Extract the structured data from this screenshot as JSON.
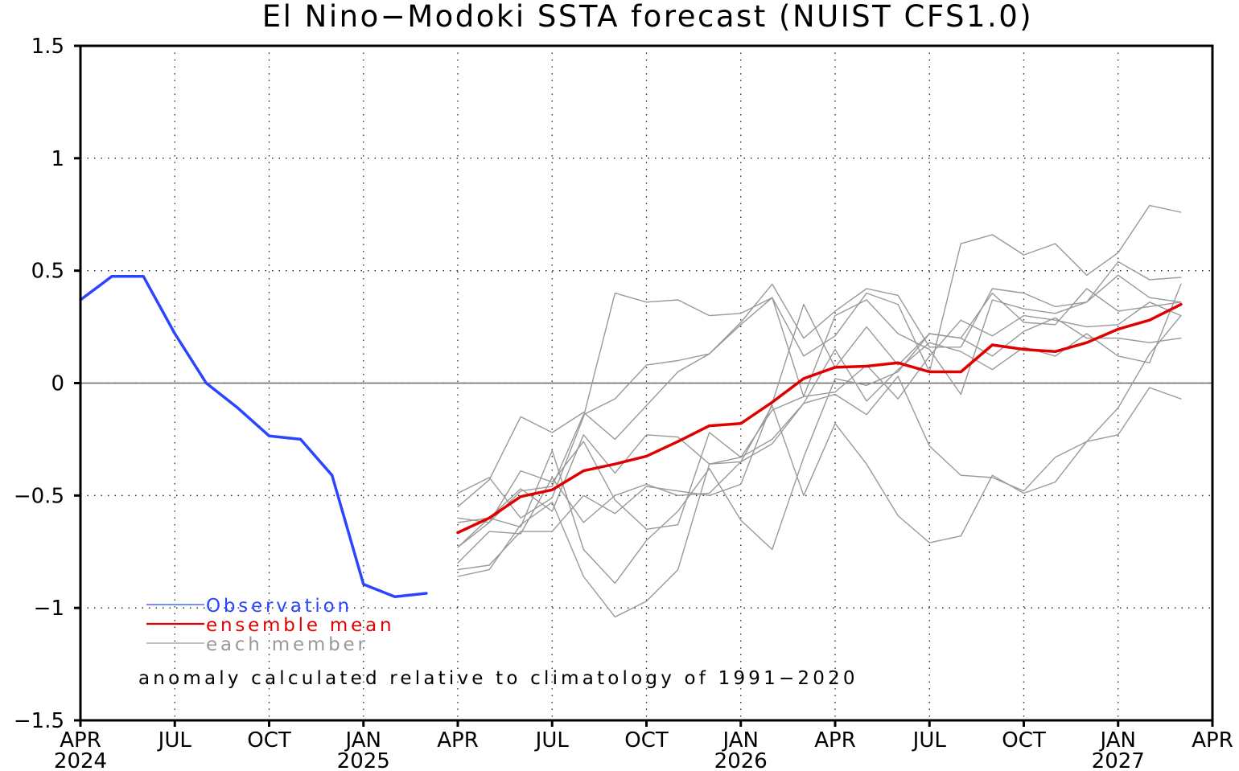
{
  "chart_data": {
    "type": "line",
    "title": "El Nino−Modoki SSTA forecast (NUIST CFS1.0)",
    "annotation": "anomaly calculated relative to climatology of 1991−2020",
    "ylim": [
      -1.5,
      1.5
    ],
    "yticks": [
      1.5,
      1,
      0.5,
      0,
      -0.5,
      -1,
      -1.5
    ],
    "ytick_labels": [
      "1.5",
      "1",
      "0.5",
      "0",
      "−0.5",
      "−1",
      "−1.5"
    ],
    "xlim": [
      "2024-04",
      "2027-04"
    ],
    "xticks": [
      {
        "date": "2024-04",
        "label": "APR",
        "year": "2024"
      },
      {
        "date": "2024-07",
        "label": "JUL",
        "year": ""
      },
      {
        "date": "2024-10",
        "label": "OCT",
        "year": ""
      },
      {
        "date": "2025-01",
        "label": "JAN",
        "year": "2025"
      },
      {
        "date": "2025-04",
        "label": "APR",
        "year": ""
      },
      {
        "date": "2025-07",
        "label": "JUL",
        "year": ""
      },
      {
        "date": "2025-10",
        "label": "OCT",
        "year": ""
      },
      {
        "date": "2026-01",
        "label": "JAN",
        "year": "2026"
      },
      {
        "date": "2026-04",
        "label": "APR",
        "year": ""
      },
      {
        "date": "2026-07",
        "label": "JUL",
        "year": ""
      },
      {
        "date": "2026-10",
        "label": "OCT",
        "year": ""
      },
      {
        "date": "2027-01",
        "label": "JAN",
        "year": "2027"
      },
      {
        "date": "2027-04",
        "label": "APR",
        "year": ""
      }
    ],
    "grid": true,
    "zero_line": true,
    "legend_position": "bottom-left",
    "series": [
      {
        "name": "Observation",
        "color": "#2b45ff",
        "role": "observation",
        "x": [
          "2024-04",
          "2024-05",
          "2024-06",
          "2024-07",
          "2024-08",
          "2024-09",
          "2024-10",
          "2024-11",
          "2024-12",
          "2025-01",
          "2025-02",
          "2025-03"
        ],
        "y": [
          0.37,
          0.475,
          0.475,
          0.22,
          0.0,
          -0.11,
          -0.235,
          -0.25,
          -0.41,
          -0.895,
          -0.95,
          -0.935
        ]
      },
      {
        "name": "ensemble mean",
        "color": "#e00000",
        "role": "mean",
        "x": [
          "2025-04",
          "2025-05",
          "2025-06",
          "2025-07",
          "2025-08",
          "2025-09",
          "2025-10",
          "2025-11",
          "2025-12",
          "2026-01",
          "2026-02",
          "2026-03",
          "2026-04",
          "2026-05",
          "2026-06",
          "2026-07",
          "2026-08",
          "2026-09",
          "2026-10",
          "2026-11",
          "2026-12",
          "2027-01",
          "2027-02",
          "2027-03"
        ],
        "y": [
          -0.665,
          -0.6,
          -0.505,
          -0.475,
          -0.39,
          -0.36,
          -0.325,
          -0.26,
          -0.19,
          -0.18,
          -0.085,
          0.02,
          0.07,
          0.075,
          0.09,
          0.05,
          0.05,
          0.17,
          0.15,
          0.14,
          0.18,
          0.24,
          0.28,
          0.35
        ]
      },
      {
        "name": "each member",
        "color": "#999999",
        "role": "member",
        "x": [
          "2025-04",
          "2025-05",
          "2025-06",
          "2025-07",
          "2025-08",
          "2025-09",
          "2025-10",
          "2025-11",
          "2025-12",
          "2026-01",
          "2026-02",
          "2026-03",
          "2026-04",
          "2026-05",
          "2026-06",
          "2026-07",
          "2026-08",
          "2026-09",
          "2026-10",
          "2026-11",
          "2026-12",
          "2027-01",
          "2027-02",
          "2027-03"
        ],
        "y": [
          -0.49,
          -0.42,
          -0.6,
          -0.51,
          -0.15,
          0.4,
          0.36,
          0.37,
          0.3,
          0.31,
          0.38,
          0.12,
          0.21,
          0.4,
          0.35,
          0.05,
          0.62,
          0.66,
          0.57,
          0.62,
          0.48,
          0.58,
          0.79,
          0.76
        ]
      },
      {
        "name": "",
        "color": "#999999",
        "role": "member",
        "x": [
          "2025-04",
          "2025-05",
          "2025-06",
          "2025-07",
          "2025-08",
          "2025-09",
          "2025-10",
          "2025-11",
          "2025-12",
          "2026-01",
          "2026-02",
          "2026-03",
          "2026-04",
          "2026-05",
          "2026-06",
          "2026-07",
          "2026-08",
          "2026-09",
          "2026-10",
          "2026-11",
          "2026-12",
          "2027-01",
          "2027-02",
          "2027-03"
        ],
        "y": [
          -0.55,
          -0.43,
          -0.15,
          -0.22,
          -0.13,
          -0.25,
          -0.1,
          0.05,
          0.13,
          0.27,
          0.44,
          0.2,
          0.32,
          0.42,
          0.39,
          0.16,
          0.16,
          0.42,
          0.4,
          0.34,
          0.36,
          0.54,
          0.46,
          0.47
        ]
      },
      {
        "name": "",
        "color": "#999999",
        "role": "member",
        "x": [
          "2025-04",
          "2025-05",
          "2025-06",
          "2025-07",
          "2025-08",
          "2025-09",
          "2025-10",
          "2025-11",
          "2025-12",
          "2026-01",
          "2026-02",
          "2026-03",
          "2026-04",
          "2026-05",
          "2026-06",
          "2026-07",
          "2026-08",
          "2026-09",
          "2026-10",
          "2026-11",
          "2026-12",
          "2027-01",
          "2027-02",
          "2027-03"
        ],
        "y": [
          -0.73,
          -0.62,
          -0.48,
          -0.46,
          -0.14,
          -0.07,
          0.08,
          0.1,
          0.13,
          0.26,
          0.38,
          -0.06,
          0.3,
          0.37,
          0.22,
          0.15,
          -0.05,
          0.37,
          0.33,
          0.31,
          0.36,
          0.48,
          0.38,
          0.36
        ]
      },
      {
        "name": "",
        "color": "#999999",
        "role": "member",
        "x": [
          "2025-04",
          "2025-05",
          "2025-06",
          "2025-07",
          "2025-08",
          "2025-09",
          "2025-10",
          "2025-11",
          "2025-12",
          "2026-01",
          "2026-02",
          "2026-03",
          "2026-04",
          "2026-05",
          "2026-06",
          "2026-07",
          "2026-08",
          "2026-09",
          "2026-10",
          "2026-11",
          "2026-12",
          "2027-01",
          "2027-02",
          "2027-03"
        ],
        "y": [
          -0.83,
          -0.81,
          -0.66,
          -0.66,
          -0.5,
          -0.58,
          -0.46,
          -0.48,
          -0.5,
          -0.45,
          -0.09,
          0.35,
          0.07,
          0.25,
          0.08,
          0.22,
          0.2,
          0.12,
          0.23,
          0.29,
          0.2,
          0.2,
          0.18,
          0.2
        ]
      },
      {
        "name": "",
        "color": "#999999",
        "role": "member",
        "x": [
          "2025-04",
          "2025-05",
          "2025-06",
          "2025-07",
          "2025-08",
          "2025-09",
          "2025-10",
          "2025-11",
          "2025-12",
          "2026-01",
          "2026-02",
          "2026-03",
          "2026-04",
          "2026-05",
          "2026-06",
          "2026-07",
          "2026-08",
          "2026-09",
          "2026-10",
          "2026-11",
          "2026-12",
          "2027-01",
          "2027-02",
          "2027-03"
        ],
        "y": [
          -0.62,
          -0.6,
          -0.47,
          -0.57,
          -0.23,
          -0.4,
          -0.23,
          -0.24,
          -0.36,
          -0.33,
          -0.12,
          -0.06,
          -0.04,
          0.08,
          -0.07,
          0.12,
          0.28,
          0.21,
          0.3,
          0.28,
          0.25,
          0.26,
          0.36,
          0.3
        ]
      },
      {
        "name": "",
        "color": "#999999",
        "role": "member",
        "x": [
          "2025-04",
          "2025-05",
          "2025-06",
          "2025-07",
          "2025-08",
          "2025-09",
          "2025-10",
          "2025-11",
          "2025-12",
          "2026-01",
          "2026-02",
          "2026-03",
          "2026-04",
          "2026-05",
          "2026-06",
          "2026-07",
          "2026-08",
          "2026-09",
          "2026-10",
          "2026-11",
          "2026-12",
          "2027-01",
          "2027-02",
          "2027-03"
        ],
        "y": [
          -0.6,
          -0.62,
          -0.39,
          -0.44,
          -0.26,
          -0.52,
          -0.65,
          -0.63,
          -0.22,
          -0.33,
          -0.25,
          -0.09,
          0.15,
          -0.08,
          0.06,
          0.18,
          0.14,
          0.06,
          0.16,
          0.12,
          0.22,
          0.12,
          0.09,
          0.44
        ]
      },
      {
        "name": "",
        "color": "#999999",
        "role": "member",
        "x": [
          "2025-04",
          "2025-05",
          "2025-06",
          "2025-07",
          "2025-08",
          "2025-09",
          "2025-10",
          "2025-11",
          "2025-12",
          "2026-01",
          "2026-02",
          "2026-03",
          "2026-04",
          "2026-05",
          "2026-06",
          "2026-07",
          "2026-08",
          "2026-09",
          "2026-10",
          "2026-11",
          "2026-12",
          "2027-01",
          "2027-02",
          "2027-03"
        ],
        "y": [
          -0.8,
          -0.66,
          -0.67,
          -0.42,
          -0.62,
          -0.5,
          -0.45,
          -0.5,
          -0.49,
          -0.35,
          -0.27,
          -0.09,
          -0.05,
          -0.14,
          0.03,
          -0.28,
          -0.41,
          -0.42,
          -0.48,
          -0.33,
          -0.26,
          -0.23,
          -0.02,
          -0.07
        ]
      },
      {
        "name": "",
        "color": "#999999",
        "role": "member",
        "x": [
          "2025-04",
          "2025-05",
          "2025-06",
          "2025-07",
          "2025-08",
          "2025-09",
          "2025-10",
          "2025-11",
          "2025-12",
          "2026-01",
          "2026-02",
          "2026-03",
          "2026-04",
          "2026-05",
          "2026-06",
          "2026-07",
          "2026-08",
          "2026-09",
          "2026-10",
          "2026-11",
          "2026-12",
          "2027-01",
          "2027-02",
          "2027-03"
        ],
        "y": [
          -0.86,
          -0.83,
          -0.63,
          -0.53,
          -0.86,
          -1.04,
          -0.97,
          -0.83,
          -0.36,
          -0.35,
          -0.1,
          -0.5,
          -0.18,
          -0.36,
          -0.59,
          -0.71,
          -0.68,
          -0.41,
          -0.49,
          -0.44,
          -0.26,
          -0.11,
          0.13,
          0.3
        ]
      },
      {
        "name": "",
        "color": "#999999",
        "role": "member",
        "x": [
          "2025-04",
          "2025-05",
          "2025-06",
          "2025-07",
          "2025-08",
          "2025-09",
          "2025-10",
          "2025-11",
          "2025-12",
          "2026-01",
          "2026-02",
          "2026-03",
          "2026-04",
          "2026-05",
          "2026-06",
          "2026-07",
          "2026-08",
          "2026-09",
          "2026-10",
          "2026-11",
          "2026-12",
          "2027-01",
          "2027-02",
          "2027-03"
        ],
        "y": [
          -0.73,
          -0.6,
          -0.64,
          -0.3,
          -0.74,
          -0.89,
          -0.7,
          -0.57,
          -0.38,
          -0.61,
          -0.74,
          -0.33,
          0.02,
          -0.01,
          0.05,
          0.22,
          0.2,
          0.4,
          0.27,
          0.26,
          0.42,
          0.32,
          0.34,
          0.36
        ]
      }
    ]
  }
}
